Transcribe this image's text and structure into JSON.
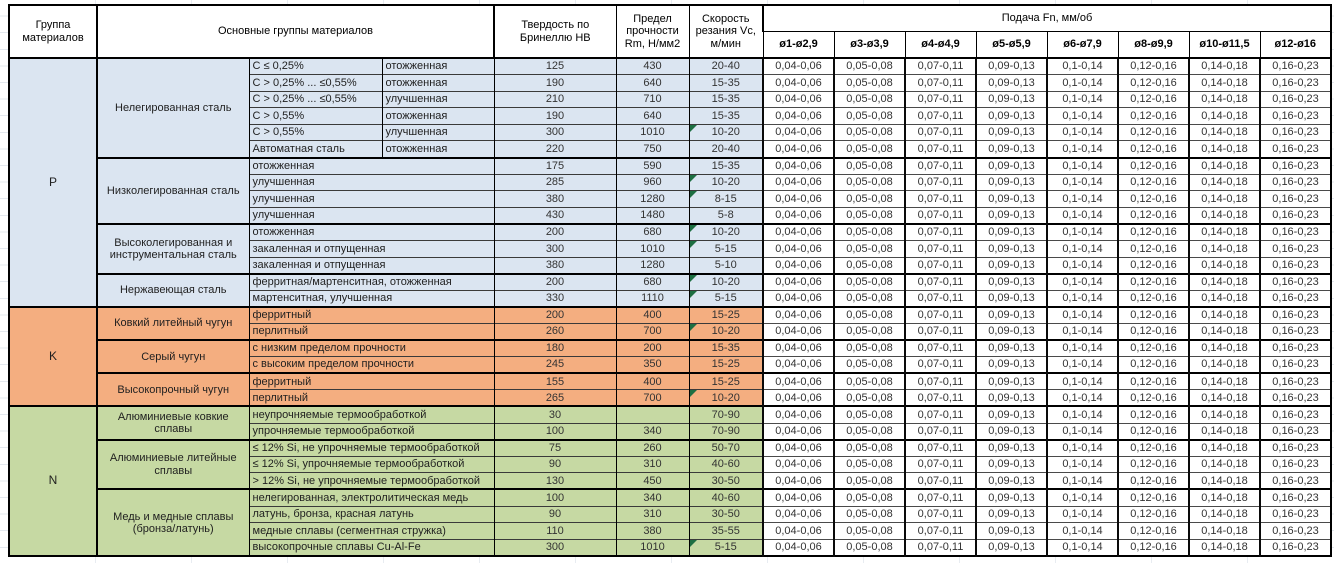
{
  "header": {
    "col_group": "Группа материалов",
    "col_main_groups": "Основные группы материалов",
    "col_hardness": "Твердость по Бринеллю HB",
    "col_strength": "Предел прочности Rm, Н/мм2",
    "col_speed": "Скорость резания Vc, м/мин",
    "feed_title": "Подача Fn, мм/об",
    "feed_cols": [
      "ø1-ø2,9",
      "ø3-ø3,9",
      "ø4-ø4,9",
      "ø5-ø5,9",
      "ø6-ø7,9",
      "ø8-ø9,9",
      "ø10-ø11,5",
      "ø12-ø16"
    ]
  },
  "feeds": [
    "0,04-0,06",
    "0,05-0,08",
    "0,07-0,11",
    "0,09-0,13",
    "0,1-0,14",
    "0,12-0,16",
    "0,14-0,18",
    "0,16-0,23"
  ],
  "colors": {
    "group_p": "#dbe5f1",
    "group_k": "#f4ae80",
    "group_n": "#c6d9a3",
    "flag_triangle": "#1d6f42"
  },
  "groups": [
    {
      "code": "P",
      "color": "#dbe5f1",
      "subgroups": [
        {
          "name": "Нелегированная сталь",
          "rows": [
            {
              "spec": "C ≤ 0,25%",
              "state": "отожженная",
              "hb": "125",
              "rm": "430",
              "vc": "20-40"
            },
            {
              "spec": "C > 0,25% ... ≤0,55%",
              "state": "отожженная",
              "hb": "190",
              "rm": "640",
              "vc": "15-35"
            },
            {
              "spec": "C > 0,25% ... ≤0,55%",
              "state": "улучшенная",
              "hb": "210",
              "rm": "710",
              "vc": "15-35"
            },
            {
              "spec": "C > 0,55%",
              "state": "отожженная",
              "hb": "190",
              "rm": "640",
              "vc": "15-35"
            },
            {
              "spec": "C > 0,55%",
              "state": "улучшенная",
              "hb": "300",
              "rm": "1010",
              "vc": "10-20",
              "flag": true
            },
            {
              "spec": "Автоматная сталь",
              "state": "отожженная",
              "hb": "220",
              "rm": "750",
              "vc": "20-40"
            }
          ]
        },
        {
          "name": "Низколегированная сталь",
          "rows": [
            {
              "desc": "отожженная",
              "hb": "175",
              "rm": "590",
              "vc": "15-35"
            },
            {
              "desc": "улучшенная",
              "hb": "285",
              "rm": "960",
              "vc": "10-20",
              "flag": true
            },
            {
              "desc": "улучшенная",
              "hb": "380",
              "rm": "1280",
              "vc": "8-15",
              "flag": true
            },
            {
              "desc": "улучшенная",
              "hb": "430",
              "rm": "1480",
              "vc": "5-8"
            }
          ]
        },
        {
          "name": "Высоколегированная и инструментальная сталь",
          "rows": [
            {
              "desc": "отожженная",
              "hb": "200",
              "rm": "680",
              "vc": "10-20",
              "flag": true
            },
            {
              "desc": "закаленная и отпущенная",
              "hb": "300",
              "rm": "1010",
              "vc": "5-15",
              "flag": true
            },
            {
              "desc": "закаленная и отпущенная",
              "hb": "380",
              "rm": "1280",
              "vc": "5-10"
            }
          ]
        },
        {
          "name": "Нержавеющая сталь",
          "rows": [
            {
              "desc": "ферритная/мартенситная, отожженная",
              "hb": "200",
              "rm": "680",
              "vc": "10-20",
              "flag": true
            },
            {
              "desc": "мартенситная, улучшенная",
              "hb": "330",
              "rm": "1110",
              "vc": "5-15",
              "flag": true
            }
          ]
        }
      ]
    },
    {
      "code": "K",
      "color": "#f4ae80",
      "subgroups": [
        {
          "name": "Ковкий литейный чугун",
          "rows": [
            {
              "desc": "ферритный",
              "hb": "200",
              "rm": "400",
              "vc": "15-25"
            },
            {
              "desc": "перлитный",
              "hb": "260",
              "rm": "700",
              "vc": "10-20",
              "flag": true
            }
          ]
        },
        {
          "name": "Серый чугун",
          "rows": [
            {
              "desc": "с низким пределом прочности",
              "hb": "180",
              "rm": "200",
              "vc": "15-35"
            },
            {
              "desc": "с высоким пределом прочности",
              "hb": "245",
              "rm": "350",
              "vc": "15-25"
            }
          ]
        },
        {
          "name": "Высокопрочный чугун",
          "rows": [
            {
              "desc": "ферритный",
              "hb": "155",
              "rm": "400",
              "vc": "15-25"
            },
            {
              "desc": "перлитный",
              "hb": "265",
              "rm": "700",
              "vc": "10-20",
              "flag": true
            }
          ]
        }
      ]
    },
    {
      "code": "N",
      "color": "#c6d9a3",
      "subgroups": [
        {
          "name": "Алюминиевые ковкие сплавы",
          "rows": [
            {
              "desc": "неупрочняемые термообработкой",
              "hb": "30",
              "rm": "",
              "vc": "70-90"
            },
            {
              "desc": "упрочняемые термообработкой",
              "hb": "100",
              "rm": "340",
              "vc": "70-90"
            }
          ]
        },
        {
          "name": "Алюминиевые литейные сплавы",
          "rows": [
            {
              "desc": "≤ 12% Si, не упрочняемые термообработкой",
              "hb": "75",
              "rm": "260",
              "vc": "50-70"
            },
            {
              "desc": "≤ 12% Si, упрочняемые термообработкой",
              "hb": "90",
              "rm": "310",
              "vc": "40-60"
            },
            {
              "desc": "> 12% Si, не упрочняемые термообработкой",
              "hb": "130",
              "rm": "450",
              "vc": "30-50"
            }
          ]
        },
        {
          "name": "Медь и медные сплавы (бронза/латунь)",
          "rows": [
            {
              "desc": "нелегированная, электролитическая медь",
              "hb": "100",
              "rm": "340",
              "vc": "40-60"
            },
            {
              "desc": "латунь, бронза, красная латунь",
              "hb": "90",
              "rm": "310",
              "vc": "30-50"
            },
            {
              "desc": "медные сплавы (сегментная стружка)",
              "hb": "110",
              "rm": "380",
              "vc": "35-55"
            },
            {
              "desc": "высокопрочные сплавы Cu-Al-Fe",
              "hb": "300",
              "rm": "1010",
              "vc": "5-15",
              "flag": true
            }
          ]
        }
      ]
    }
  ]
}
